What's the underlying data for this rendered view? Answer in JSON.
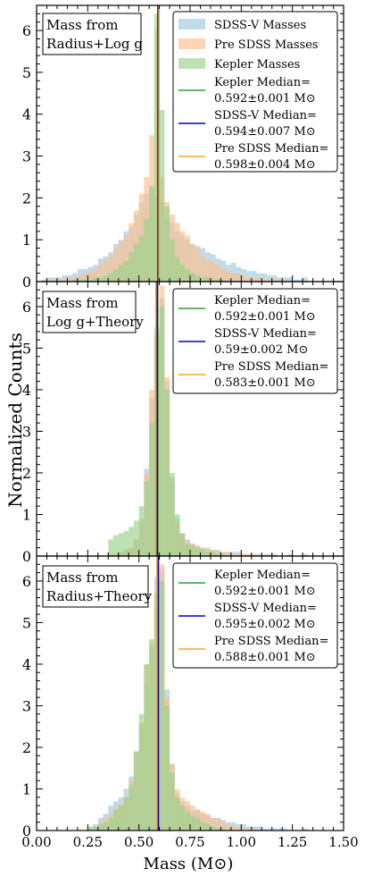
{
  "figure": {
    "ylabel": "Normalized Counts",
    "xlabel": "Mass (M⊙)",
    "x_ticks": [
      "0.00",
      "0.25",
      "0.50",
      "0.75",
      "1.00",
      "1.25",
      "1.50"
    ]
  },
  "colors": {
    "sdss_fill": "#9ecae1",
    "pre_fill": "#fdbf8a",
    "kepler_fill": "#98d38b",
    "kepler_line": "#2ca02c",
    "sdss_line": "#0000cc",
    "pre_line": "#f5a623"
  },
  "chart_data": [
    {
      "type": "bar",
      "panel_label": [
        "Mass from",
        "Radius+Log g"
      ],
      "xlim": [
        0,
        1.5
      ],
      "ylim": [
        0,
        6.6
      ],
      "y_ticks": [
        0,
        1,
        2,
        3,
        4,
        5,
        6
      ],
      "bin_width": 0.025,
      "bin_centers": [
        0.0375,
        0.0625,
        0.0875,
        0.1125,
        0.1375,
        0.1625,
        0.1875,
        0.2125,
        0.2375,
        0.2625,
        0.2875,
        0.3125,
        0.3375,
        0.3625,
        0.3875,
        0.4125,
        0.4375,
        0.4625,
        0.4875,
        0.5125,
        0.5375,
        0.5625,
        0.5875,
        0.6125,
        0.6375,
        0.6625,
        0.6875,
        0.7125,
        0.7375,
        0.7625,
        0.7875,
        0.8125,
        0.8375,
        0.8625,
        0.8875,
        0.9125,
        0.9375,
        0.9625,
        0.9875,
        1.0125,
        1.0375,
        1.0625,
        1.0875,
        1.1125,
        1.1375,
        1.1625,
        1.1875,
        1.2125,
        1.2375,
        1.2625,
        1.2875,
        1.3125
      ],
      "legend": [
        "SDSS-V Masses",
        "Pre SDSS Masses",
        "Kepler Masses"
      ],
      "series": [
        {
          "name": "SDSS-V Masses",
          "color_key": "sdss_fill",
          "values": [
            0.05,
            0.1,
            0.1,
            0.1,
            0.15,
            0.15,
            0.2,
            0.3,
            0.3,
            0.35,
            0.4,
            0.55,
            0.6,
            0.7,
            0.9,
            1.0,
            1.2,
            1.3,
            1.6,
            1.9,
            2.1,
            2.2,
            2.0,
            1.9,
            1.5,
            1.4,
            1.2,
            1.1,
            1.0,
            0.9,
            0.85,
            0.8,
            0.7,
            0.65,
            0.55,
            0.5,
            0.4,
            0.45,
            0.35,
            0.3,
            0.25,
            0.25,
            0.2,
            0.2,
            0.15,
            0.15,
            0.1,
            0.1,
            0.1,
            0.05,
            0.05,
            0.1
          ]
        },
        {
          "name": "Pre SDSS Masses",
          "color_key": "pre_fill",
          "values": [
            0,
            0,
            0.05,
            0.05,
            0.05,
            0.1,
            0.1,
            0.15,
            0.2,
            0.25,
            0.3,
            0.4,
            0.5,
            0.6,
            0.8,
            0.95,
            1.1,
            1.4,
            1.7,
            2.1,
            2.5,
            3.5,
            6.0,
            2.5,
            1.9,
            1.6,
            1.4,
            1.2,
            1.1,
            0.9,
            0.8,
            0.6,
            0.55,
            0.45,
            0.4,
            0.3,
            0.25,
            0.2,
            0.2,
            0.15,
            0.1,
            0.1,
            0.1,
            0.05,
            0.05,
            0.05,
            0.05,
            0,
            0,
            0,
            0,
            0
          ]
        },
        {
          "name": "Kepler Masses",
          "color_key": "kepler_fill",
          "values": [
            0,
            0,
            0,
            0,
            0,
            0,
            0.05,
            0.05,
            0.05,
            0.05,
            0.1,
            0.1,
            0.15,
            0.2,
            0.3,
            0.4,
            0.5,
            0.7,
            0.9,
            1.1,
            1.5,
            2.3,
            6.4,
            4.1,
            1.8,
            1.0,
            0.6,
            0.4,
            0.3,
            0.2,
            0.15,
            0.1,
            0.1,
            0.05,
            0.05,
            0.05,
            0,
            0,
            0,
            0,
            0,
            0,
            0,
            0,
            0,
            0,
            0,
            0,
            0,
            0,
            0,
            0
          ]
        }
      ],
      "medians": [
        {
          "label": [
            "Kepler Median=",
            "0.592±0.001 M⊙"
          ],
          "x": 0.592,
          "color_key": "kepler_line"
        },
        {
          "label": [
            "SDSS-V Median=",
            "0.594±0.007 M⊙"
          ],
          "x": 0.594,
          "color_key": "sdss_line"
        },
        {
          "label": [
            "Pre SDSS Median=",
            "0.598±0.004 M⊙"
          ],
          "x": 0.598,
          "color_key": "pre_line"
        }
      ]
    },
    {
      "type": "bar",
      "panel_label": [
        "Mass from",
        "Log g+Theory"
      ],
      "xlim": [
        0,
        1.5
      ],
      "ylim": [
        0,
        6.6
      ],
      "y_ticks": [
        0,
        1,
        2,
        3,
        4,
        5,
        6
      ],
      "bin_width": 0.025,
      "bin_centers": [
        0.3625,
        0.3875,
        0.4125,
        0.4375,
        0.4625,
        0.4875,
        0.5125,
        0.5375,
        0.5625,
        0.5875,
        0.6125,
        0.6375,
        0.6625,
        0.6875,
        0.7125,
        0.7375,
        0.7625,
        0.7875,
        0.8125,
        0.8375,
        0.8625,
        0.8875,
        0.9125,
        0.9375,
        0.9625,
        0.9875,
        1.0125,
        1.0375,
        1.0625,
        1.0875,
        1.1125,
        1.1375,
        1.1625,
        1.1875,
        1.2125,
        1.2375,
        1.2625,
        1.2875,
        1.3125
      ],
      "legend": [],
      "series": [
        {
          "name": "SDSS-V Masses",
          "color_key": "sdss_fill",
          "values": [
            0.05,
            0.05,
            0.1,
            0.15,
            0.2,
            0.4,
            0.8,
            2.1,
            3.8,
            5.5,
            6.2,
            4.2,
            1.9,
            0.9,
            0.55,
            0.4,
            0.3,
            0.25,
            0.2,
            0.2,
            0.15,
            0.15,
            0.1,
            0.1,
            0.1,
            0.1,
            0.05,
            0.05,
            0.05,
            0.05,
            0.05,
            0.05,
            0.05,
            0,
            0,
            0.05,
            0,
            0,
            0.05
          ]
        },
        {
          "name": "Pre SDSS Masses",
          "color_key": "pre_fill",
          "values": [
            0.05,
            0.05,
            0.1,
            0.15,
            0.2,
            0.4,
            0.9,
            2.0,
            4.0,
            5.3,
            6.5,
            4.3,
            1.8,
            0.8,
            0.5,
            0.35,
            0.3,
            0.25,
            0.2,
            0.15,
            0.15,
            0.1,
            0.1,
            0.1,
            0.05,
            0.05,
            0.05,
            0.05,
            0.05,
            0,
            0,
            0,
            0,
            0,
            0,
            0,
            0,
            0,
            0
          ]
        },
        {
          "name": "Kepler Masses",
          "color_key": "kepler_fill",
          "values": [
            0.4,
            0.5,
            0.55,
            0.6,
            0.7,
            0.85,
            1.2,
            1.8,
            3.2,
            5.3,
            6.0,
            4.0,
            2.0,
            1.0,
            0.55,
            0.3,
            0.25,
            0.2,
            0.15,
            0.1,
            0.1,
            0.05,
            0.05,
            0,
            0,
            0,
            0,
            0,
            0,
            0,
            0,
            0,
            0,
            0,
            0,
            0,
            0,
            0,
            0
          ]
        }
      ],
      "medians": [
        {
          "label": [
            "Kepler Median=",
            "0.592±0.001 M⊙"
          ],
          "x": 0.592,
          "color_key": "kepler_line"
        },
        {
          "label": [
            "SDSS-V Median=",
            "0.59±0.002 M⊙"
          ],
          "x": 0.59,
          "color_key": "sdss_line"
        },
        {
          "label": [
            "Pre SDSS Median=",
            "0.583±0.001 M⊙"
          ],
          "x": 0.583,
          "color_key": "pre_line"
        }
      ]
    },
    {
      "type": "bar",
      "panel_label": [
        "Mass from",
        "Radius+Theory"
      ],
      "xlim": [
        0,
        1.5
      ],
      "ylim": [
        0,
        6.6
      ],
      "y_ticks": [
        0,
        1,
        2,
        3,
        4,
        5,
        6
      ],
      "bin_width": 0.025,
      "bin_centers": [
        0.2625,
        0.2875,
        0.3125,
        0.3375,
        0.3625,
        0.3875,
        0.4125,
        0.4375,
        0.4625,
        0.4875,
        0.5125,
        0.5375,
        0.5625,
        0.5875,
        0.6125,
        0.6375,
        0.6625,
        0.6875,
        0.7125,
        0.7375,
        0.7625,
        0.7875,
        0.8125,
        0.8375,
        0.8625,
        0.8875,
        0.9125,
        0.9375,
        0.9625,
        0.9875,
        1.0125,
        1.0375,
        1.0625,
        1.0875,
        1.1125,
        1.1375,
        1.1625,
        1.1875,
        1.2125,
        1.2375,
        1.2625,
        1.2875,
        1.3125
      ],
      "legend": [],
      "series": [
        {
          "name": "SDSS-V Masses",
          "color_key": "sdss_fill",
          "values": [
            0.1,
            0.15,
            0.3,
            0.4,
            0.6,
            0.7,
            0.8,
            1.0,
            1.3,
            1.9,
            2.5,
            3.5,
            4.4,
            6.1,
            6.3,
            3.4,
            1.6,
            0.9,
            0.7,
            0.6,
            0.5,
            0.5,
            0.4,
            0.35,
            0.3,
            0.3,
            0.25,
            0.2,
            0.2,
            0.15,
            0.15,
            0.1,
            0.1,
            0.1,
            0.05,
            0.05,
            0.05,
            0.05,
            0.05,
            0,
            0,
            0,
            0.05
          ]
        },
        {
          "name": "Pre SDSS Masses",
          "color_key": "pre_fill",
          "values": [
            0.05,
            0.1,
            0.2,
            0.3,
            0.4,
            0.55,
            0.65,
            0.8,
            1.2,
            1.9,
            2.6,
            4.0,
            4.5,
            5.5,
            6.4,
            3.2,
            1.6,
            1.0,
            0.8,
            0.7,
            0.6,
            0.5,
            0.45,
            0.4,
            0.3,
            0.3,
            0.2,
            0.15,
            0.1,
            0.1,
            0.05,
            0.05,
            0.05,
            0,
            0,
            0,
            0,
            0,
            0,
            0,
            0,
            0,
            0
          ]
        },
        {
          "name": "Kepler Masses",
          "color_key": "kepler_fill",
          "values": [
            0.05,
            0.1,
            0.15,
            0.2,
            0.3,
            0.5,
            0.6,
            0.8,
            1.1,
            1.9,
            2.8,
            4.0,
            4.6,
            5.7,
            6.0,
            3.0,
            1.4,
            0.8,
            0.6,
            0.45,
            0.35,
            0.3,
            0.2,
            0.15,
            0.1,
            0.05,
            0.05,
            0,
            0,
            0,
            0,
            0,
            0,
            0,
            0,
            0,
            0,
            0,
            0,
            0,
            0,
            0,
            0
          ]
        }
      ],
      "medians": [
        {
          "label": [
            "Kepler Median=",
            "0.592±0.001 M⊙"
          ],
          "x": 0.592,
          "color_key": "kepler_line"
        },
        {
          "label": [
            "SDSS-V Median=",
            "0.595±0.002 M⊙"
          ],
          "x": 0.595,
          "color_key": "sdss_line"
        },
        {
          "label": [
            "Pre SDSS Median=",
            "0.588±0.001 M⊙"
          ],
          "x": 0.588,
          "color_key": "pre_line"
        }
      ]
    }
  ]
}
